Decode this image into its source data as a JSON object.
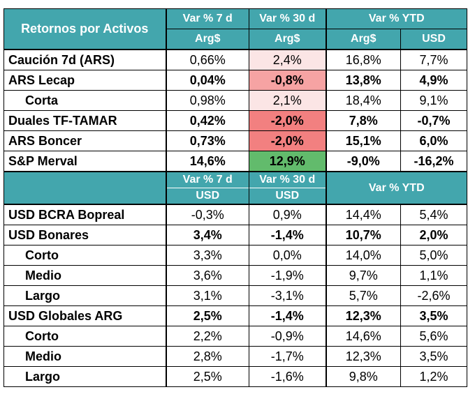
{
  "table_title": "Retornos por Activos",
  "header1": {
    "col_7d": "Var % 7 d",
    "col_30d": "Var % 30 d",
    "col_ytd": "Var % YTD",
    "cur_7d": "Arg$",
    "cur_30d": "Arg$",
    "cur_ytd_ars": "Arg$",
    "cur_ytd_usd": "USD"
  },
  "header2": {
    "col_7d": "Var % 7 d",
    "col_30d": "Var % 30 d",
    "col_ytd": "Var % YTD",
    "cur_7d": "USD",
    "cur_30d": "USD"
  },
  "colors": {
    "header": "#43a6ad",
    "light_pink": "#fbe5e5",
    "salmon": "#f6a3a3",
    "red": "#f28080",
    "green": "#62bb6c"
  },
  "ars_rows": [
    {
      "name": "Caución 7d (ARS)",
      "v7": "0,66%",
      "v30": "2,4%",
      "ytd_ars": "16,8%",
      "ytd_usd": "7,7%",
      "bold": false,
      "sub": false,
      "v30_color": "#fbe5e5"
    },
    {
      "name": "ARS Lecap",
      "v7": "0,04%",
      "v30": "-0,8%",
      "ytd_ars": "13,8%",
      "ytd_usd": "4,9%",
      "bold": true,
      "sub": false,
      "v30_color": "#f6a3a3"
    },
    {
      "name": "Corta",
      "v7": "0,98%",
      "v30": "2,1%",
      "ytd_ars": "18,4%",
      "ytd_usd": "9,1%",
      "bold": false,
      "sub": true,
      "v30_color": "#fbe5e5"
    },
    {
      "name": "Duales TF-TAMAR",
      "v7": "0,42%",
      "v30": "-2,0%",
      "ytd_ars": "7,8%",
      "ytd_usd": "-0,7%",
      "bold": true,
      "sub": false,
      "v30_color": "#f28080"
    },
    {
      "name": "ARS Boncer",
      "v7": "0,73%",
      "v30": "-2,0%",
      "ytd_ars": "15,1%",
      "ytd_usd": "6,0%",
      "bold": true,
      "sub": false,
      "v30_color": "#f28080"
    },
    {
      "name": "S&P Merval",
      "v7": "14,6%",
      "v30": "12,9%",
      "ytd_ars": "-9,0%",
      "ytd_usd": "-16,2%",
      "bold": true,
      "sub": false,
      "v30_color": "#62bb6c"
    }
  ],
  "usd_rows": [
    {
      "name": "USD BCRA Bopreal",
      "v7": "-0,3%",
      "v30": "0,9%",
      "ytd_a": "14,4%",
      "ytd_b": "5,4%",
      "bold": false,
      "sub": false
    },
    {
      "name": "USD Bonares",
      "v7": "3,4%",
      "v30": "-1,4%",
      "ytd_a": "10,7%",
      "ytd_b": "2,0%",
      "bold": true,
      "sub": false
    },
    {
      "name": "Corto",
      "v7": "3,3%",
      "v30": "0,0%",
      "ytd_a": "14,0%",
      "ytd_b": "5,0%",
      "bold": false,
      "sub": true
    },
    {
      "name": "Medio",
      "v7": "3,6%",
      "v30": "-1,9%",
      "ytd_a": "9,7%",
      "ytd_b": "1,1%",
      "bold": false,
      "sub": true
    },
    {
      "name": "Largo",
      "v7": "3,1%",
      "v30": "-3,1%",
      "ytd_a": "5,7%",
      "ytd_b": "-2,6%",
      "bold": false,
      "sub": true
    },
    {
      "name": "USD Globales ARG",
      "v7": "2,5%",
      "v30": "-1,4%",
      "ytd_a": "12,3%",
      "ytd_b": "3,5%",
      "bold": true,
      "sub": false
    },
    {
      "name": "Corto",
      "v7": "2,2%",
      "v30": "-0,9%",
      "ytd_a": "14,6%",
      "ytd_b": "5,6%",
      "bold": false,
      "sub": true
    },
    {
      "name": "Medio",
      "v7": "2,8%",
      "v30": "-1,7%",
      "ytd_a": "12,3%",
      "ytd_b": "3,5%",
      "bold": false,
      "sub": true
    },
    {
      "name": "Largo",
      "v7": "2,5%",
      "v30": "-1,6%",
      "ytd_a": "9,8%",
      "ytd_b": "1,2%",
      "bold": false,
      "sub": true
    }
  ]
}
